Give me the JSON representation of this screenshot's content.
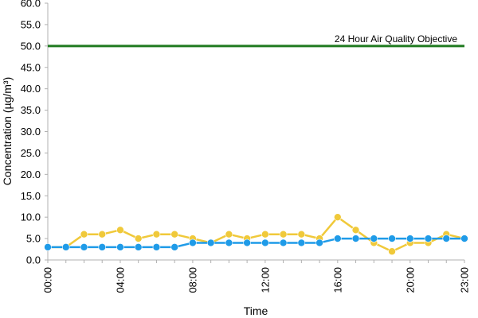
{
  "chart_data": {
    "type": "line",
    "title": "",
    "xlabel": "Time",
    "ylabel": "Concentration (µg/m³)",
    "ylim": [
      0,
      60
    ],
    "y_ticks": [
      "0.0",
      "5.0",
      "10.0",
      "15.0",
      "20.0",
      "25.0",
      "30.0",
      "35.0",
      "40.0",
      "45.0",
      "50.0",
      "55.0",
      "60.0"
    ],
    "y_tick_values": [
      0,
      5,
      10,
      15,
      20,
      25,
      30,
      35,
      40,
      45,
      50,
      55,
      60
    ],
    "x": [
      "00:00",
      "01:00",
      "02:00",
      "03:00",
      "04:00",
      "05:00",
      "06:00",
      "07:00",
      "08:00",
      "09:00",
      "10:00",
      "11:00",
      "12:00",
      "13:00",
      "14:00",
      "15:00",
      "16:00",
      "17:00",
      "18:00",
      "19:00",
      "20:00",
      "21:00",
      "22:00",
      "23:00"
    ],
    "x_tick_labels": [
      "00:00",
      "04:00",
      "08:00",
      "12:00",
      "16:00",
      "20:00",
      "23:00"
    ],
    "x_tick_hours": [
      0,
      4,
      8,
      12,
      16,
      20,
      23
    ],
    "series": [
      {
        "color": "#f0c93a",
        "values": [
          3,
          3,
          6,
          6,
          7,
          5,
          6,
          6,
          5,
          4,
          6,
          5,
          6,
          6,
          6,
          5,
          10,
          7,
          4,
          2,
          4,
          4,
          6,
          5
        ]
      },
      {
        "color": "#1f9be8",
        "values": [
          3,
          3,
          3,
          3,
          3,
          3,
          3,
          3,
          4,
          4,
          4,
          4,
          4,
          4,
          4,
          4,
          5,
          5,
          5,
          5,
          5,
          5,
          5,
          5
        ]
      }
    ],
    "reference_line": {
      "label": "24 Hour Air Quality Objective",
      "value": 50,
      "color": "#1f7a1f"
    },
    "grid": false,
    "axis_color": "#b0b0b0"
  }
}
